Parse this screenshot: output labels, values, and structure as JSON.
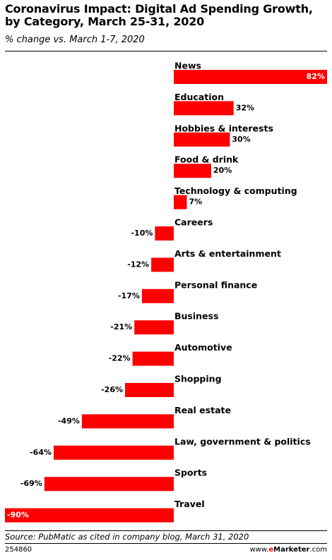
{
  "chart_data": {
    "type": "bar",
    "orientation": "horizontal",
    "title": "Coronavirus Impact: Digital Ad Spending Growth, by Category, March 25-31, 2020",
    "subtitle": "% change vs. March 1-7, 2020",
    "categories": [
      "News",
      "Education",
      "Hobbies & interests",
      "Food & drink",
      "Technology & computing",
      "Careers",
      "Arts & entertainment",
      "Personal finance",
      "Business",
      "Automotive",
      "Shopping",
      "Real estate",
      "Law, government & politics",
      "Sports",
      "Travel"
    ],
    "values": [
      82,
      32,
      30,
      20,
      7,
      -10,
      -12,
      -17,
      -21,
      -22,
      -26,
      -49,
      -64,
      -69,
      -90
    ],
    "value_labels": [
      "82%",
      "32%",
      "30%",
      "20%",
      "7%",
      "-10%",
      "-12%",
      "-17%",
      "-21%",
      "-22%",
      "-26%",
      "-49%",
      "-64%",
      "-69%",
      "-90%"
    ],
    "xlim": [
      -90,
      82
    ],
    "bar_color": "#ff0000",
    "grid": false,
    "legend": "none"
  },
  "footer": {
    "source": "Source: PubMatic as cited in company blog, March 31, 2020",
    "chart_id": "254860",
    "brand_prefix": "www.",
    "brand_accent": "e",
    "brand_name": "Marketer",
    "brand_suffix": ".com"
  }
}
